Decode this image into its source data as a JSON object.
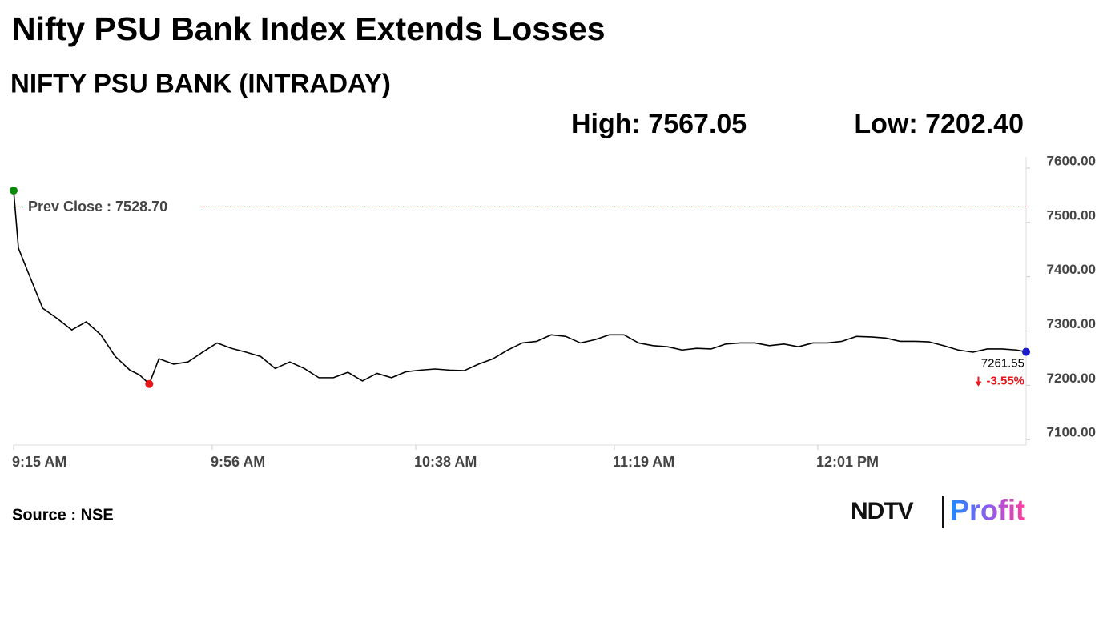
{
  "chart_data": {
    "type": "line",
    "title": "Nifty PSU Bank Index Extends Losses",
    "subtitle": "NIFTY PSU BANK (INTRADAY)",
    "high": "High: 7567.05",
    "low": "Low: 7202.40",
    "prev_close": {
      "value": 7528.7,
      "label": "Prev Close : 7528.70"
    },
    "end_label": {
      "value": 7261.55,
      "label": "7261.55"
    },
    "change_label": {
      "value": -3.55,
      "label": "-3.55%"
    },
    "source": "Source : NSE",
    "logo": {
      "left": "NDTV",
      "right": "Profit"
    },
    "color": "#000000",
    "marker_colors": {
      "start": "#0a8a0a",
      "low": "#e8161b",
      "end": "#1c1cc8"
    },
    "x": [
      "9:15 AM",
      "9:16 AM",
      "9:18 AM",
      "9:21 AM",
      "9:24 AM",
      "9:27 AM",
      "9:30 AM",
      "9:33 AM",
      "9:36 AM",
      "9:39 AM",
      "9:41 AM",
      "9:43 AM",
      "9:45 AM",
      "9:48 AM",
      "9:51 AM",
      "9:54 AM",
      "9:57 AM",
      "10:00 AM",
      "10:03 AM",
      "10:06 AM",
      "10:09 AM",
      "10:12 AM",
      "10:15 AM",
      "10:18 AM",
      "10:21 AM",
      "10:24 AM",
      "10:27 AM",
      "10:30 AM",
      "10:33 AM",
      "10:36 AM",
      "10:39 AM",
      "10:42 AM",
      "10:45 AM",
      "10:48 AM",
      "10:51 AM",
      "10:54 AM",
      "10:57 AM",
      "11:00 AM",
      "11:03 AM",
      "11:06 AM",
      "11:09 AM",
      "11:12 AM",
      "11:15 AM",
      "11:18 AM",
      "11:21 AM",
      "11:24 AM",
      "11:27 AM",
      "11:30 AM",
      "11:33 AM",
      "11:36 AM",
      "11:39 AM",
      "11:42 AM",
      "11:45 AM",
      "11:48 AM",
      "11:51 AM",
      "11:54 AM",
      "11:57 AM",
      "12:00 PM",
      "12:03 PM",
      "12:06 PM",
      "12:09 PM",
      "12:12 PM",
      "12:15 PM",
      "12:18 PM",
      "12:21 PM",
      "12:24 PM",
      "12:27 PM",
      "12:30 PM",
      "12:33 PM",
      "12:36 PM",
      "12:39 PM",
      "12:42 PM",
      "12:44 PM"
    ],
    "values": [
      7558.7,
      7452.5,
      7408,
      7342,
      7323,
      7302,
      7317,
      7293,
      7253,
      7228,
      7219,
      7202.4,
      7249,
      7239,
      7243,
      7261,
      7278,
      7268,
      7261,
      7253,
      7231,
      7243,
      7231,
      7214,
      7214,
      7224,
      7208,
      7222,
      7214,
      7225,
      7228,
      7230,
      7228,
      7227,
      7239,
      7249,
      7265,
      7278,
      7281,
      7293,
      7290,
      7278,
      7284,
      7293,
      7293,
      7278,
      7273,
      7271,
      7265,
      7268,
      7267,
      7276,
      7278,
      7278,
      7273,
      7276,
      7271,
      7278,
      7278,
      7281,
      7290,
      7289,
      7287,
      7281,
      7281,
      7280,
      7273,
      7265,
      7261,
      7267,
      7267,
      7265,
      7261.55
    ],
    "xlim": [
      "9:15 AM",
      "12:44 PM"
    ],
    "xticks": [
      "9:15 AM",
      "9:56 AM",
      "10:38 AM",
      "11:19 AM",
      "12:01 PM"
    ],
    "ylim": [
      7090,
      7620
    ],
    "yticks": [
      {
        "value": 7100,
        "label": "7100.00"
      },
      {
        "value": 7200,
        "label": "7200.00"
      },
      {
        "value": 7300,
        "label": "7300.00"
      },
      {
        "value": 7400,
        "label": "7400.00"
      },
      {
        "value": 7500,
        "label": "7500.00"
      },
      {
        "value": 7600,
        "label": "7600.00"
      }
    ]
  }
}
